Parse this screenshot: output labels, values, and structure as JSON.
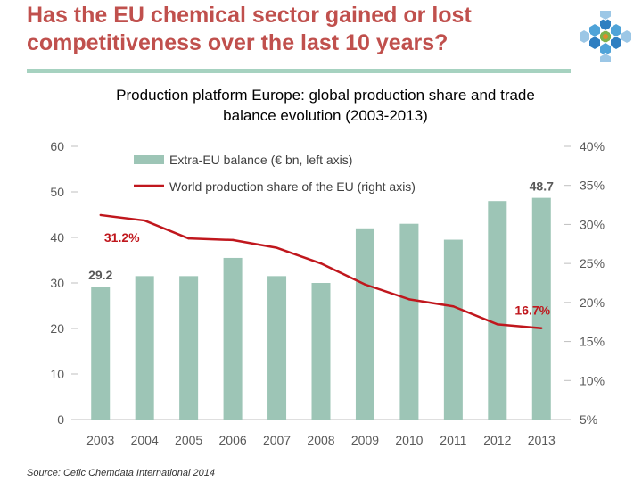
{
  "header": {
    "title_line1": "Has the EU chemical sector gained or lost",
    "title_line2": "competitiveness over the last 10 years?"
  },
  "logo": {
    "icon": "hexagon-cluster-logo"
  },
  "subtitle": {
    "line1": "Production platform Europe: global production share and trade",
    "line2": "balance evolution (2003-2013)"
  },
  "source": "Source: Cefic Chemdata International 2014",
  "colors": {
    "title": "#c0504d",
    "bar": "#9dc5b6",
    "line": "#c0171d",
    "axis_text": "#595959",
    "rule": "#a6d2c0"
  },
  "chart_data": {
    "type": "bar",
    "categories": [
      "2003",
      "2004",
      "2005",
      "2006",
      "2007",
      "2008",
      "2009",
      "2010",
      "2011",
      "2012",
      "2013"
    ],
    "series": [
      {
        "name": "Extra-EU balance (€ bn, left axis)",
        "type": "bar",
        "axis": "left",
        "values": [
          29.2,
          31.5,
          31.5,
          35.5,
          31.5,
          30,
          42,
          43,
          39.5,
          48,
          48.7
        ]
      },
      {
        "name": "World production share of the EU (right axis)",
        "type": "line",
        "axis": "right",
        "values": [
          31.2,
          30.5,
          28.2,
          28,
          27,
          25,
          22.3,
          20.4,
          19.5,
          17.2,
          16.7
        ]
      }
    ],
    "data_labels": [
      {
        "series": 0,
        "index": 0,
        "text": "29.2"
      },
      {
        "series": 0,
        "index": 10,
        "text": "48.7"
      },
      {
        "series": 1,
        "index": 0,
        "text": "31.2%"
      },
      {
        "series": 1,
        "index": 10,
        "text": "16.7%"
      }
    ],
    "left_axis": {
      "ylim": [
        0,
        60
      ],
      "ticks": [
        "0",
        "10",
        "20",
        "30",
        "40",
        "50",
        "60"
      ]
    },
    "right_axis": {
      "ylim": [
        5,
        40
      ],
      "ticks": [
        "5%",
        "10%",
        "15%",
        "20%",
        "25%",
        "30%",
        "35%",
        "40%"
      ]
    },
    "legend_position": "top-left"
  }
}
